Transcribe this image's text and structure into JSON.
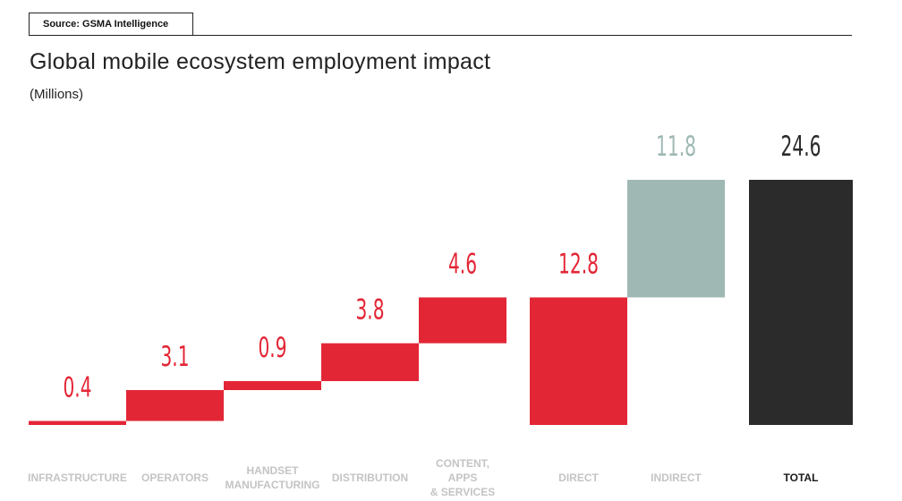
{
  "source": "Source: GSMA Intelligence",
  "chart_data": {
    "type": "bar",
    "subtype": "waterfall",
    "title": "Global mobile ecosystem employment impact",
    "subtitle": "(Millions)",
    "categories": [
      [
        "INFRASTRUCTURE"
      ],
      [
        "OPERATORS"
      ],
      [
        "HANDSET",
        "MANUFACTURING"
      ],
      [
        "DISTRIBUTION"
      ],
      [
        "CONTENT,",
        "APPS",
        "& SERVICES"
      ],
      [
        "DIRECT"
      ],
      [
        "INDIRECT"
      ],
      [
        "TOTAL"
      ]
    ],
    "values": [
      0.4,
      3.1,
      0.9,
      3.8,
      4.6,
      12.8,
      11.8,
      24.6
    ],
    "labels": [
      "0.4",
      "3.1",
      "0.9",
      "3.8",
      "4.6",
      "12.8",
      "11.8",
      "24.6"
    ],
    "kinds": [
      "step",
      "step",
      "step",
      "step",
      "step",
      "subtotal",
      "step",
      "total"
    ],
    "colors": {
      "direct": "#e32636",
      "indirect": "#9fb8b4",
      "total": "#2b2b2b",
      "category_label": "#c4c4c4",
      "total_label": "#1a1a1a"
    },
    "ylim": [
      0,
      24.6
    ],
    "grid": false,
    "legend": "none"
  }
}
